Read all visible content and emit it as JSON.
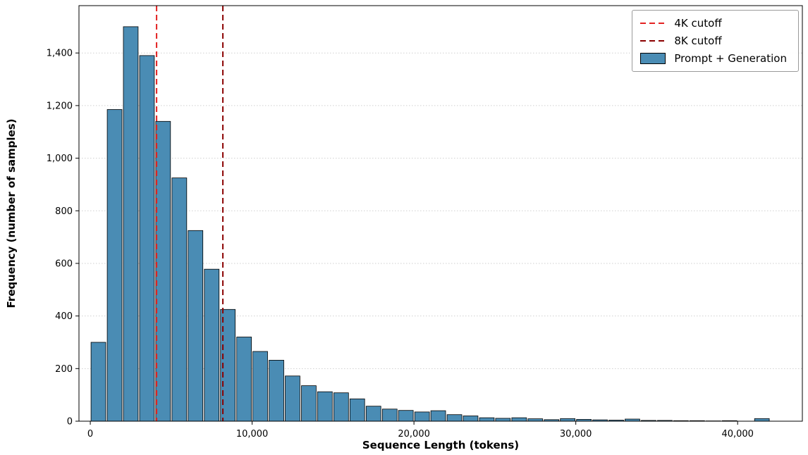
{
  "chart_data": {
    "type": "bar",
    "subtype": "histogram",
    "title": "",
    "xlabel": "Sequence Length (tokens)",
    "ylabel": "Frequency (number of samples)",
    "series_label": "Prompt + Generation",
    "bar_color": "#4a8cb4",
    "bar_edge_color": "#000000",
    "grid": "horizontal-dotted",
    "legend_position": "upper-right",
    "bin_start": 0,
    "bin_width": 1000,
    "counts": [
      300,
      1185,
      1500,
      1390,
      1140,
      925,
      725,
      578,
      425,
      320,
      265,
      232,
      172,
      135,
      112,
      108,
      85,
      57,
      46,
      41,
      35,
      40,
      25,
      20,
      13,
      11,
      13,
      9,
      6,
      10,
      7,
      5,
      4,
      8,
      3,
      3,
      2,
      2,
      1,
      2,
      0,
      10
    ],
    "xlim": [
      -700,
      44000
    ],
    "ylim": [
      0,
      1580
    ],
    "xticks": [
      {
        "value": 0,
        "label": "0"
      },
      {
        "value": 10000,
        "label": "10,000"
      },
      {
        "value": 20000,
        "label": "20,000"
      },
      {
        "value": 30000,
        "label": "30,000"
      },
      {
        "value": 40000,
        "label": "40,000"
      }
    ],
    "yticks": [
      {
        "value": 0,
        "label": "0"
      },
      {
        "value": 200,
        "label": "200"
      },
      {
        "value": 400,
        "label": "400"
      },
      {
        "value": 600,
        "label": "600"
      },
      {
        "value": 800,
        "label": "800"
      },
      {
        "value": 1000,
        "label": "1,000"
      },
      {
        "value": 1200,
        "label": "1,200"
      },
      {
        "value": 1400,
        "label": "1,400"
      }
    ],
    "cutoffs": [
      {
        "label": "4K cutoff",
        "value": 4096,
        "color": "#e32222",
        "style": "dashed"
      },
      {
        "label": "8K cutoff",
        "value": 8192,
        "color": "#8b0000",
        "style": "dashed"
      }
    ]
  }
}
